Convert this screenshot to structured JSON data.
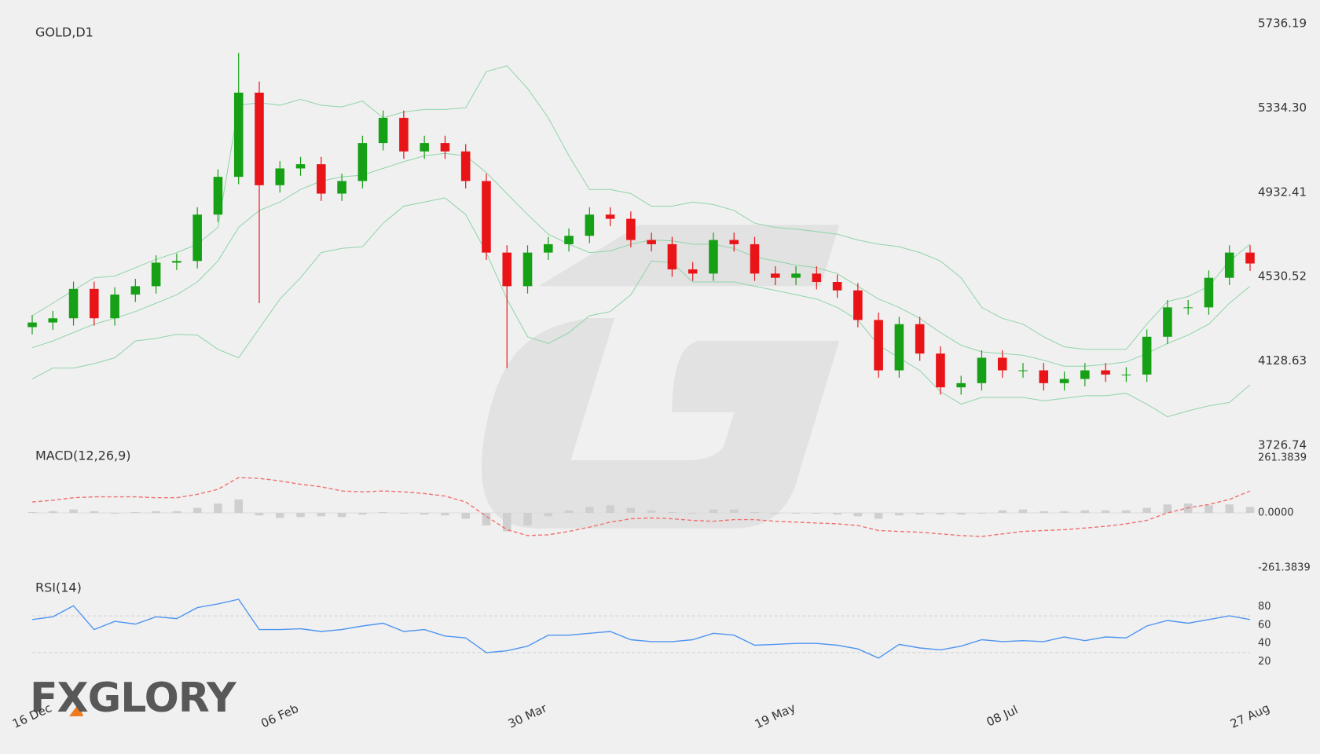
{
  "logo": "FXGLORY",
  "chart_data": [
    {
      "type": "candlestick",
      "title": "GOLD,D1",
      "categories": [
        "16 Dec",
        null,
        null,
        null,
        null,
        null,
        null,
        null,
        null,
        null,
        null,
        null,
        "06 Feb",
        null,
        null,
        null,
        null,
        null,
        null,
        null,
        null,
        null,
        null,
        null,
        "30 Mar",
        null,
        null,
        null,
        null,
        null,
        null,
        null,
        null,
        null,
        null,
        null,
        "19 May",
        null,
        null,
        null,
        null,
        null,
        null,
        null,
        null,
        null,
        null,
        "08 Jul",
        null,
        null,
        null,
        null,
        null,
        null,
        null,
        null,
        null,
        null,
        null,
        "27 Aug"
      ],
      "open": [
        4290,
        4312,
        4332,
        4472,
        4332,
        4445,
        4485,
        4597,
        4605,
        4826,
        5006,
        5407,
        4966,
        5046,
        5066,
        4926,
        4986,
        5167,
        5287,
        5127,
        5167,
        5127,
        4986,
        4645,
        4485,
        4645,
        4685,
        4725,
        4826,
        4806,
        4705,
        4685,
        4565,
        4545,
        4705,
        4685,
        4545,
        4525,
        4545,
        4505,
        4465,
        4324,
        4084,
        4304,
        4164,
        4003,
        4023,
        4144,
        4084,
        4084,
        4023,
        4043,
        4084,
        4064,
        4064,
        4244,
        4384,
        4384,
        4525,
        4645
      ],
      "high": [
        4347,
        4367,
        4507,
        4507,
        4480,
        4520,
        4632,
        4640,
        4861,
        5041,
        5596,
        5460,
        5081,
        5101,
        5101,
        5021,
        5202,
        5322,
        5322,
        5202,
        5202,
        5162,
        5021,
        4680,
        4680,
        4720,
        4760,
        4861,
        4861,
        4841,
        4740,
        4720,
        4600,
        4740,
        4740,
        4720,
        4580,
        4580,
        4580,
        4540,
        4500,
        4359,
        4339,
        4339,
        4199,
        4058,
        4179,
        4179,
        4119,
        4119,
        4078,
        4119,
        4119,
        4099,
        4279,
        4419,
        4419,
        4560,
        4680,
        4680
      ],
      "low": [
        4255,
        4277,
        4297,
        4297,
        4297,
        4410,
        4450,
        4562,
        4570,
        4791,
        4971,
        4404,
        4931,
        5011,
        4891,
        4891,
        4951,
        5132,
        5092,
        5092,
        5092,
        4951,
        4610,
        4095,
        4450,
        4610,
        4650,
        4690,
        4771,
        4670,
        4650,
        4530,
        4510,
        4510,
        4650,
        4510,
        4490,
        4490,
        4470,
        4430,
        4289,
        4049,
        4049,
        4129,
        3968,
        3968,
        3988,
        4049,
        4049,
        3988,
        3988,
        4008,
        4029,
        4029,
        4029,
        4209,
        4349,
        4349,
        4490,
        4558
      ],
      "close": [
        4312,
        4332,
        4472,
        4332,
        4445,
        4485,
        4597,
        4605,
        4826,
        5006,
        5407,
        4966,
        5046,
        5066,
        4926,
        4986,
        5167,
        5287,
        5127,
        5167,
        5127,
        4986,
        4645,
        4485,
        4645,
        4685,
        4725,
        4826,
        4806,
        4705,
        4685,
        4565,
        4545,
        4705,
        4685,
        4545,
        4525,
        4545,
        4505,
        4465,
        4324,
        4084,
        4304,
        4164,
        4003,
        4023,
        4144,
        4084,
        4084,
        4023,
        4043,
        4084,
        4064,
        4064,
        4244,
        4384,
        4384,
        4525,
        4645,
        4593
      ],
      "up_color": "#16a016",
      "down_color": "#e81418",
      "series": [
        {
          "color": "#8fd4a8",
          "values": [
            4344,
            4404,
            4465,
            4525,
            4533,
            4573,
            4613,
            4645,
            4685,
            4765,
            5347,
            5359,
            5347,
            5375,
            5347,
            5339,
            5367,
            5287,
            5315,
            5327,
            5327,
            5335,
            5507,
            5535,
            5427,
            5287,
            5106,
            4946,
            4946,
            4926,
            4866,
            4866,
            4886,
            4874,
            4846,
            4785,
            4765,
            4757,
            4745,
            4733,
            4705,
            4685,
            4673,
            4645,
            4605,
            4525,
            4384,
            4332,
            4304,
            4244,
            4196,
            4184,
            4184,
            4184,
            4304,
            4412,
            4436,
            4485,
            4605,
            4685
          ]
        },
        {
          "color": "#8fd4a8",
          "values": [
            4192,
            4224,
            4264,
            4304,
            4332,
            4364,
            4404,
            4444,
            4505,
            4605,
            4765,
            4846,
            4886,
            4946,
            4986,
            5006,
            5014,
            5046,
            5078,
            5106,
            5118,
            5106,
            5026,
            4926,
            4826,
            4733,
            4685,
            4645,
            4653,
            4685,
            4705,
            4701,
            4685,
            4685,
            4665,
            4625,
            4605,
            4585,
            4573,
            4545,
            4485,
            4424,
            4384,
            4332,
            4264,
            4204,
            4172,
            4164,
            4156,
            4132,
            4104,
            4104,
            4112,
            4124,
            4164,
            4212,
            4252,
            4304,
            4404,
            4485
          ]
        },
        {
          "color": "#8fd4a8",
          "values": [
            4043,
            4095,
            4095,
            4116,
            4144,
            4224,
            4236,
            4256,
            4252,
            4184,
            4144,
            4284,
            4424,
            4525,
            4645,
            4665,
            4673,
            4785,
            4866,
            4886,
            4906,
            4826,
            4645,
            4424,
            4244,
            4212,
            4264,
            4344,
            4364,
            4444,
            4605,
            4597,
            4505,
            4505,
            4505,
            4485,
            4465,
            4444,
            4424,
            4384,
            4324,
            4204,
            4144,
            4083,
            3983,
            3923,
            3955,
            3955,
            3955,
            3939,
            3951,
            3963,
            3963,
            3975,
            3923,
            3863,
            3891,
            3915,
            3931,
            4015
          ]
        }
      ],
      "ylim": [
        3726.74,
        5736.19
      ],
      "yticks": [
        3726.74,
        4128.63,
        4530.52,
        4932.41,
        {
          "value": 5334.3,
          "label": "5334.30"
        },
        5736.19
      ],
      "grid": false
    },
    {
      "type": "macd",
      "title": "MACD(12,26,9)",
      "series": [
        {
          "color": "#f07070",
          "values": [
            52,
            60,
            72,
            76,
            76,
            76,
            72,
            72,
            88,
            112,
            168,
            164,
            152,
            136,
            124,
            104,
            100,
            104,
            100,
            92,
            80,
            52,
            -16,
            -80,
            -108,
            -104,
            -88,
            -68,
            -44,
            -28,
            -24,
            -28,
            -36,
            -40,
            -32,
            -32,
            -40,
            -44,
            -48,
            -52,
            -60,
            -84,
            -88,
            -92,
            -100,
            -108,
            -112,
            -100,
            -88,
            -84,
            -80,
            -72,
            -64,
            -52,
            -36,
            0,
            24,
            40,
            64,
            104
          ]
        }
      ],
      "histogram": {
        "color": "#cfcfcf",
        "values": [
          4,
          8,
          16,
          8,
          -4,
          4,
          8,
          8,
          24,
          44,
          64,
          -12,
          -24,
          -20,
          -16,
          -20,
          -8,
          4,
          -4,
          -8,
          -12,
          -28,
          -60,
          -88,
          -60,
          -16,
          12,
          28,
          36,
          24,
          12,
          4,
          -4,
          16,
          16,
          4,
          -4,
          -4,
          -4,
          -8,
          -16,
          -28,
          -12,
          -8,
          -8,
          -8,
          -4,
          12,
          16,
          8,
          8,
          12,
          12,
          12,
          24,
          40,
          44,
          36,
          40,
          28
        ]
      },
      "ylim": [
        -261.3839,
        261.3839
      ],
      "yticks": [
        -261.3839,
        {
          "value": 0,
          "label": "0.0000"
        },
        261.3839
      ],
      "grid": false
    },
    {
      "type": "line",
      "title": "RSI(14)",
      "series": [
        {
          "color": "#4f95f0",
          "values": [
            66,
            69,
            81,
            55,
            64,
            61,
            69,
            67,
            79,
            83,
            88,
            55,
            55,
            56,
            53,
            55,
            59,
            62,
            53,
            55,
            48,
            46,
            30,
            32,
            37,
            49,
            49,
            51,
            53,
            44,
            42,
            42,
            44,
            51,
            49,
            38,
            39,
            40,
            40,
            38,
            34,
            24,
            39,
            35,
            33,
            37,
            44,
            42,
            43,
            42,
            47,
            43,
            47,
            46,
            59,
            65,
            62,
            66,
            70,
            66
          ]
        }
      ],
      "levels": [
        30,
        70
      ],
      "ylim": [
        0,
        100
      ],
      "yticks": [
        20,
        40,
        60,
        80
      ],
      "grid": false
    }
  ]
}
